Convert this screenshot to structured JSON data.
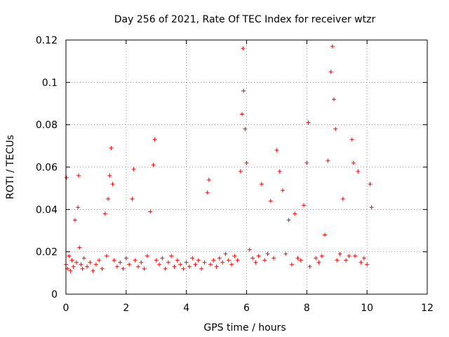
{
  "chart_data": {
    "type": "scatter",
    "title": "Day 256 of 2021, Rate Of TEC Index for receiver wtzr",
    "xlabel": "GPS time / hours",
    "ylabel": "ROTI / TECUs",
    "xlim": [
      0,
      12
    ],
    "ylim": [
      0,
      0.12
    ],
    "xticks": [
      0,
      2,
      4,
      6,
      8,
      10,
      12
    ],
    "xtick_labels": [
      "0",
      "2",
      "4",
      "6",
      "8",
      "10",
      "12"
    ],
    "yticks": [
      0,
      0.02,
      0.04,
      0.06,
      0.08,
      0.1,
      0.12
    ],
    "ytick_labels": [
      "0",
      "0.02",
      "0.04",
      "0.06",
      "0.08",
      "0.1",
      "0.12"
    ],
    "grid": true,
    "marker": "+",
    "color": "#ff0000",
    "series": [
      {
        "name": "ROTI",
        "x": [
          0.0,
          0.02,
          0.05,
          0.1,
          0.15,
          0.2,
          0.25,
          0.3,
          0.35,
          0.4,
          0.42,
          0.45,
          0.5,
          0.55,
          0.6,
          0.7,
          0.8,
          0.9,
          1.0,
          1.1,
          1.2,
          1.3,
          1.35,
          1.4,
          1.45,
          1.5,
          1.55,
          1.6,
          1.7,
          1.8,
          1.9,
          2.0,
          2.1,
          2.2,
          2.25,
          2.3,
          2.4,
          2.5,
          2.6,
          2.7,
          2.8,
          2.9,
          2.95,
          3.0,
          3.1,
          3.2,
          3.3,
          3.4,
          3.5,
          3.6,
          3.7,
          3.8,
          3.9,
          4.0,
          4.1,
          4.2,
          4.3,
          4.4,
          4.5,
          4.6,
          4.7,
          4.75,
          4.8,
          4.9,
          5.0,
          5.1,
          5.2,
          5.3,
          5.4,
          5.5,
          5.6,
          5.7,
          5.8,
          5.85,
          5.88,
          5.9,
          5.95,
          6.0,
          6.1,
          6.2,
          6.3,
          6.4,
          6.5,
          6.6,
          6.7,
          6.8,
          6.9,
          7.0,
          7.1,
          7.2,
          7.3,
          7.4,
          7.5,
          7.6,
          7.7,
          7.8,
          7.9,
          8.0,
          8.05,
          8.1,
          8.3,
          8.4,
          8.5,
          8.6,
          8.7,
          8.8,
          8.85,
          8.9,
          8.95,
          9.0,
          9.1,
          9.2,
          9.3,
          9.4,
          9.5,
          9.55,
          9.6,
          9.7,
          9.8,
          9.9,
          10.0,
          10.1,
          10.15
        ],
        "y": [
          0.014,
          0.055,
          0.012,
          0.018,
          0.011,
          0.016,
          0.013,
          0.035,
          0.015,
          0.041,
          0.056,
          0.022,
          0.014,
          0.012,
          0.017,
          0.013,
          0.015,
          0.011,
          0.014,
          0.016,
          0.012,
          0.038,
          0.018,
          0.045,
          0.056,
          0.069,
          0.052,
          0.016,
          0.013,
          0.015,
          0.012,
          0.017,
          0.014,
          0.045,
          0.059,
          0.016,
          0.013,
          0.015,
          0.012,
          0.018,
          0.039,
          0.061,
          0.073,
          0.016,
          0.014,
          0.017,
          0.012,
          0.015,
          0.018,
          0.013,
          0.016,
          0.014,
          0.012,
          0.015,
          0.013,
          0.017,
          0.014,
          0.016,
          0.012,
          0.015,
          0.048,
          0.054,
          0.014,
          0.016,
          0.013,
          0.017,
          0.015,
          0.019,
          0.016,
          0.014,
          0.018,
          0.016,
          0.058,
          0.085,
          0.116,
          0.096,
          0.078,
          0.062,
          0.021,
          0.017,
          0.015,
          0.018,
          0.052,
          0.016,
          0.019,
          0.044,
          0.017,
          0.068,
          0.058,
          0.049,
          0.019,
          0.035,
          0.014,
          0.038,
          0.017,
          0.016,
          0.042,
          0.062,
          0.081,
          0.013,
          0.017,
          0.015,
          0.018,
          0.028,
          0.063,
          0.105,
          0.117,
          0.092,
          0.078,
          0.016,
          0.019,
          0.045,
          0.016,
          0.018,
          0.073,
          0.062,
          0.018,
          0.058,
          0.015,
          0.017,
          0.014,
          0.052,
          0.041
        ]
      }
    ]
  }
}
